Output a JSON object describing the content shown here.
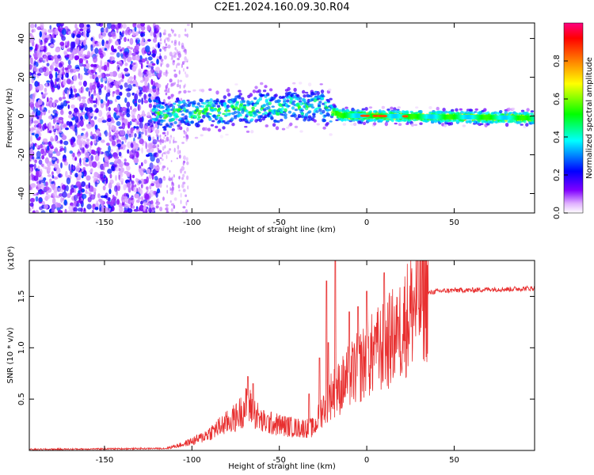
{
  "title": "C2E1.2024.160.09.30.R04",
  "chart_data": [
    {
      "type": "heatmap",
      "name": "spectrogram",
      "xlabel": "Height of straight line (km)",
      "ylabel": "Frequency (Hz)",
      "xlim": [
        -193,
        96
      ],
      "ylim": [
        -50,
        48
      ],
      "xticks": [
        -150,
        -100,
        -50,
        0,
        50
      ],
      "xtick_labels": [
        "-150",
        "-100",
        "-50",
        "0",
        "50"
      ],
      "yticks": [
        -40,
        -20,
        0,
        20,
        40
      ],
      "ytick_labels": [
        "-40",
        "-20",
        "0",
        "20",
        "40"
      ],
      "colorbar": {
        "label": "Normalized spectral amplitude",
        "range": [
          0.0,
          1.0
        ],
        "ticks": [
          0.0,
          0.2,
          0.4,
          0.6,
          0.8
        ],
        "tick_labels": [
          "0.0",
          "0.2",
          "0.4",
          "0.6",
          "0.8"
        ],
        "colors": [
          "#ffffff",
          "#e0b0ff",
          "#8000ff",
          "#0000ff",
          "#00ffff",
          "#00ff00",
          "#ffff00",
          "#ff8000",
          "#ff0000",
          "#ff0080"
        ]
      }
    },
    {
      "type": "line",
      "name": "snr",
      "xlabel": "Height of straight line (km)",
      "ylabel": "SNR (10 * v/v)",
      "scale_label": "(x10⁴)",
      "xlim": [
        -193,
        96
      ],
      "ylim": [
        0,
        1.85
      ],
      "xticks": [
        -150,
        -100,
        -50,
        0,
        50
      ],
      "xtick_labels": [
        "-150",
        "-100",
        "-50",
        "0",
        "50"
      ],
      "yticks": [
        0.5,
        1.0,
        1.5
      ],
      "ytick_labels": [
        "0.5",
        "1.0",
        "1.5"
      ],
      "line_color": "#e83030",
      "anchors": {
        "x": [
          -193,
          -115,
          -105,
          -95,
          -85,
          -75,
          -68,
          -60,
          -50,
          -40,
          -30,
          -25,
          -20,
          -15,
          -10,
          -5,
          0,
          5,
          10,
          15,
          20,
          25,
          30,
          35,
          40,
          50,
          60,
          70,
          80,
          96
        ],
        "y": [
          0.01,
          0.02,
          0.06,
          0.12,
          0.22,
          0.32,
          0.45,
          0.28,
          0.25,
          0.22,
          0.22,
          0.42,
          0.55,
          0.62,
          0.72,
          0.8,
          0.88,
          0.96,
          1.02,
          1.1,
          1.2,
          1.35,
          1.48,
          1.53,
          1.55,
          1.56,
          1.56,
          1.57,
          1.57,
          1.58
        ]
      },
      "spikes": {
        "x": [
          -68,
          -65,
          -33,
          -27,
          -23,
          -22,
          -18,
          -10,
          -5,
          0,
          5,
          10,
          18
        ],
        "y": [
          0.72,
          0.65,
          0.55,
          0.9,
          1.65,
          1.05,
          1.85,
          1.35,
          1.4,
          1.55,
          1.2,
          1.73,
          1.3
        ]
      }
    }
  ]
}
